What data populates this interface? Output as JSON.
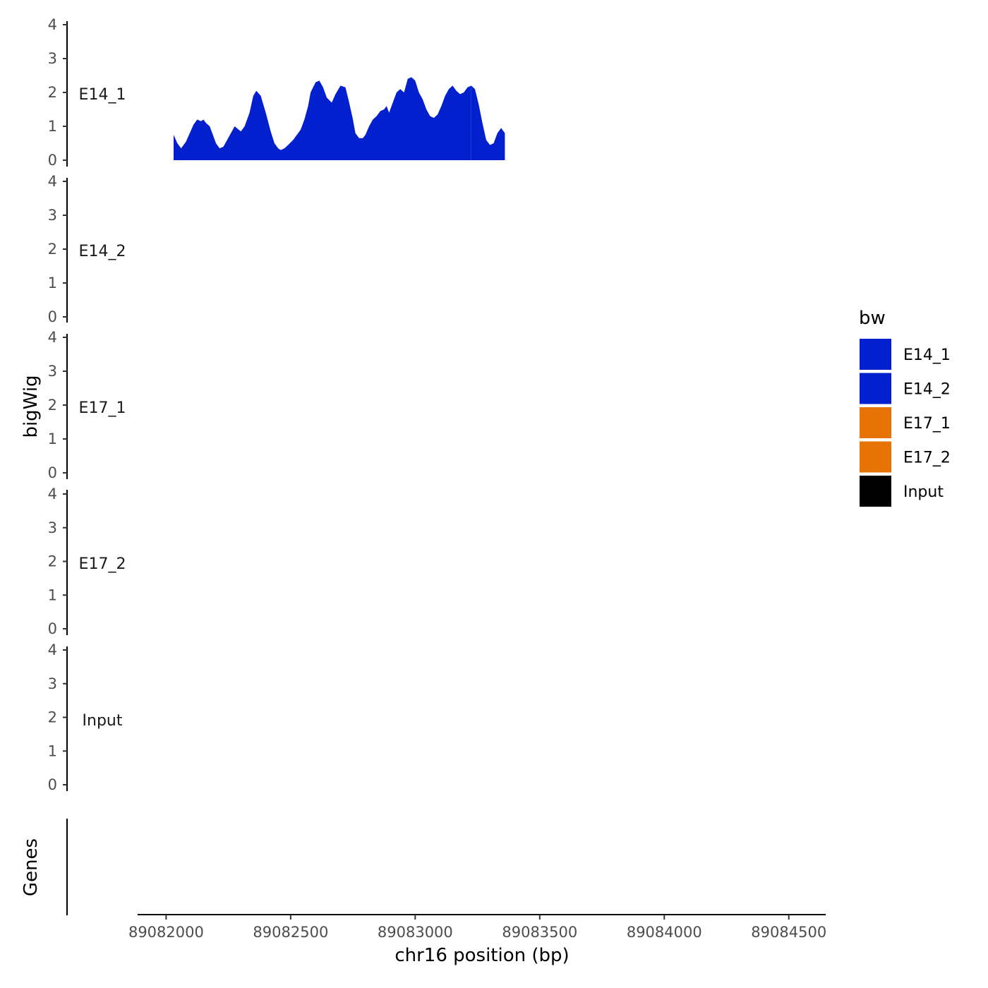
{
  "chart_data": {
    "type": "area",
    "xlabel": "chr16 position (bp)",
    "ylabel": "bigWig",
    "gene_track_label": "Genes",
    "xlim": [
      89081900,
      89084560
    ],
    "ylim": [
      0,
      4
    ],
    "x_ticks": [
      89082000,
      89082500,
      89083000,
      89083500,
      89084000,
      89084500
    ],
    "y_ticks": [
      0,
      1,
      2,
      3,
      4
    ],
    "legend": {
      "title": "bw",
      "position": "right",
      "entries": [
        {
          "label": "E14_1",
          "color": "#0220CE"
        },
        {
          "label": "E14_2",
          "color": "#0220CE"
        },
        {
          "label": "E17_1",
          "color": "#E87305"
        },
        {
          "label": "E17_2",
          "color": "#E87305"
        },
        {
          "label": "Input",
          "color": "#000000"
        }
      ]
    },
    "series": [
      {
        "name": "E14_1",
        "color": "#0220CE",
        "segments": [
          {
            "x": [
              89082030,
              89082045,
              89082060,
              89082080,
              89082095,
              89082110,
              89082125,
              89082140,
              89082150,
              89082160,
              89082175,
              89082190,
              89082200,
              89082215,
              89082230,
              89082245,
              89082260,
              89082275,
              89082300,
              89082315,
              89082335,
              89082350,
              89082362,
              89082380,
              89082400,
              89082420,
              89082435,
              89082450,
              89082460,
              89082475,
              89082490,
              89082510,
              89082530,
              89082540,
              89082555,
              89082570,
              89082580,
              89082600,
              89082615,
              89082630,
              89082645,
              89082665,
              89082680,
              89082700,
              89082720,
              89082735,
              89082750,
              89082760,
              89082775,
              89082790,
              89082800,
              89082815,
              89082830,
              89082845,
              89082860,
              89082875,
              89082885,
              89082895,
              89082910,
              89082925,
              89082940,
              89082955,
              89082970,
              89082985,
              89083000,
              89083015,
              89083030,
              89083045,
              89083060,
              89083075,
              89083090,
              89083105,
              89083120,
              89083135,
              89083150,
              89083165,
              89083180,
              89083195,
              89083210,
              89083225
            ],
            "y": [
              0.75,
              0.5,
              0.35,
              0.55,
              0.8,
              1.05,
              1.2,
              1.15,
              1.2,
              1.1,
              1.0,
              0.7,
              0.5,
              0.35,
              0.4,
              0.6,
              0.8,
              1.0,
              0.85,
              1.0,
              1.4,
              1.9,
              2.05,
              1.9,
              1.4,
              0.85,
              0.5,
              0.35,
              0.3,
              0.35,
              0.45,
              0.6,
              0.8,
              0.9,
              1.2,
              1.6,
              2.0,
              2.3,
              2.35,
              2.15,
              1.85,
              1.7,
              1.95,
              2.2,
              2.15,
              1.7,
              1.2,
              0.8,
              0.65,
              0.65,
              0.75,
              1.0,
              1.2,
              1.3,
              1.45,
              1.5,
              1.6,
              1.4,
              1.7,
              2.0,
              2.1,
              2.0,
              2.4,
              2.45,
              2.35,
              2.0,
              1.8,
              1.5,
              1.3,
              1.25,
              1.35,
              1.6,
              1.9,
              2.1,
              2.2,
              2.05,
              1.95,
              2.0,
              2.15,
              2.2
            ]
          },
          {
            "x": [
              89083225,
              89083240,
              89083255,
              89083270,
              89083285,
              89083300,
              89083315,
              89083330,
              89083345,
              89083360
            ],
            "y": [
              2.2,
              2.1,
              1.65,
              1.1,
              0.6,
              0.45,
              0.5,
              0.8,
              0.95,
              0.8
            ]
          }
        ]
      }
    ]
  }
}
